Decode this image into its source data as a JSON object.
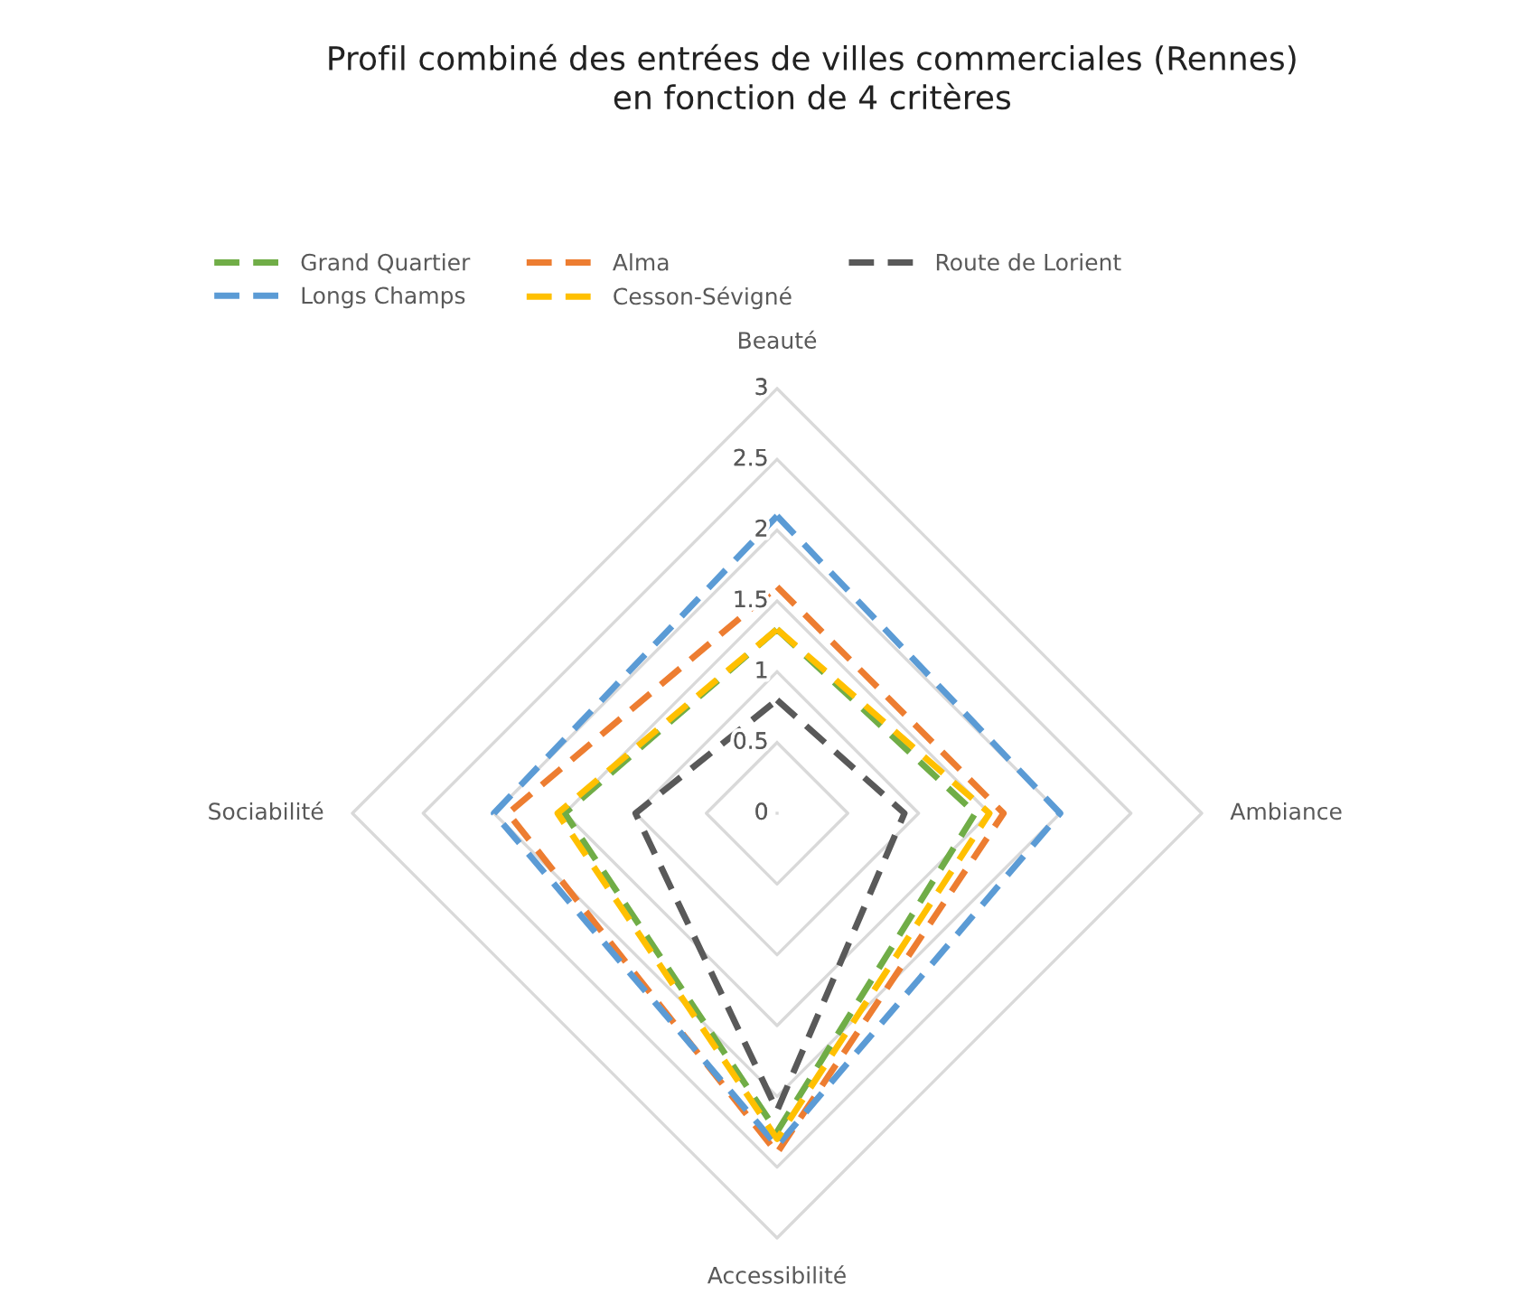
{
  "chart_data": {
    "type": "radar",
    "title": "Profil combiné des entrées de villes commerciales (Rennes)\nen fonction de 4 critères",
    "categories": [
      "Beauté",
      "Ambiance",
      "Accessibilité",
      "Sociabilité"
    ],
    "series": [
      {
        "name": "Grand Quartier",
        "color": "#70ad47",
        "values": [
          1.3,
          1.4,
          2.25,
          1.5
        ]
      },
      {
        "name": "Alma",
        "color": "#ed7d31",
        "values": [
          1.6,
          1.6,
          2.4,
          1.9
        ]
      },
      {
        "name": "Route de Lorient",
        "color": "#595959",
        "values": [
          0.8,
          0.9,
          2.1,
          1.0
        ]
      },
      {
        "name": "Longs Champs",
        "color": "#5b9bd5",
        "values": [
          2.1,
          2.0,
          2.35,
          2.0
        ]
      },
      {
        "name": "Cesson-Sévigné",
        "color": "#ffc000",
        "values": [
          1.3,
          1.5,
          2.3,
          1.55
        ]
      }
    ],
    "ylim": [
      0,
      3
    ],
    "yticks": [
      0,
      0.5,
      1,
      1.5,
      2,
      2.5,
      3
    ],
    "grid": true,
    "legend": "top",
    "line_style": "dashed",
    "marker": "none"
  }
}
